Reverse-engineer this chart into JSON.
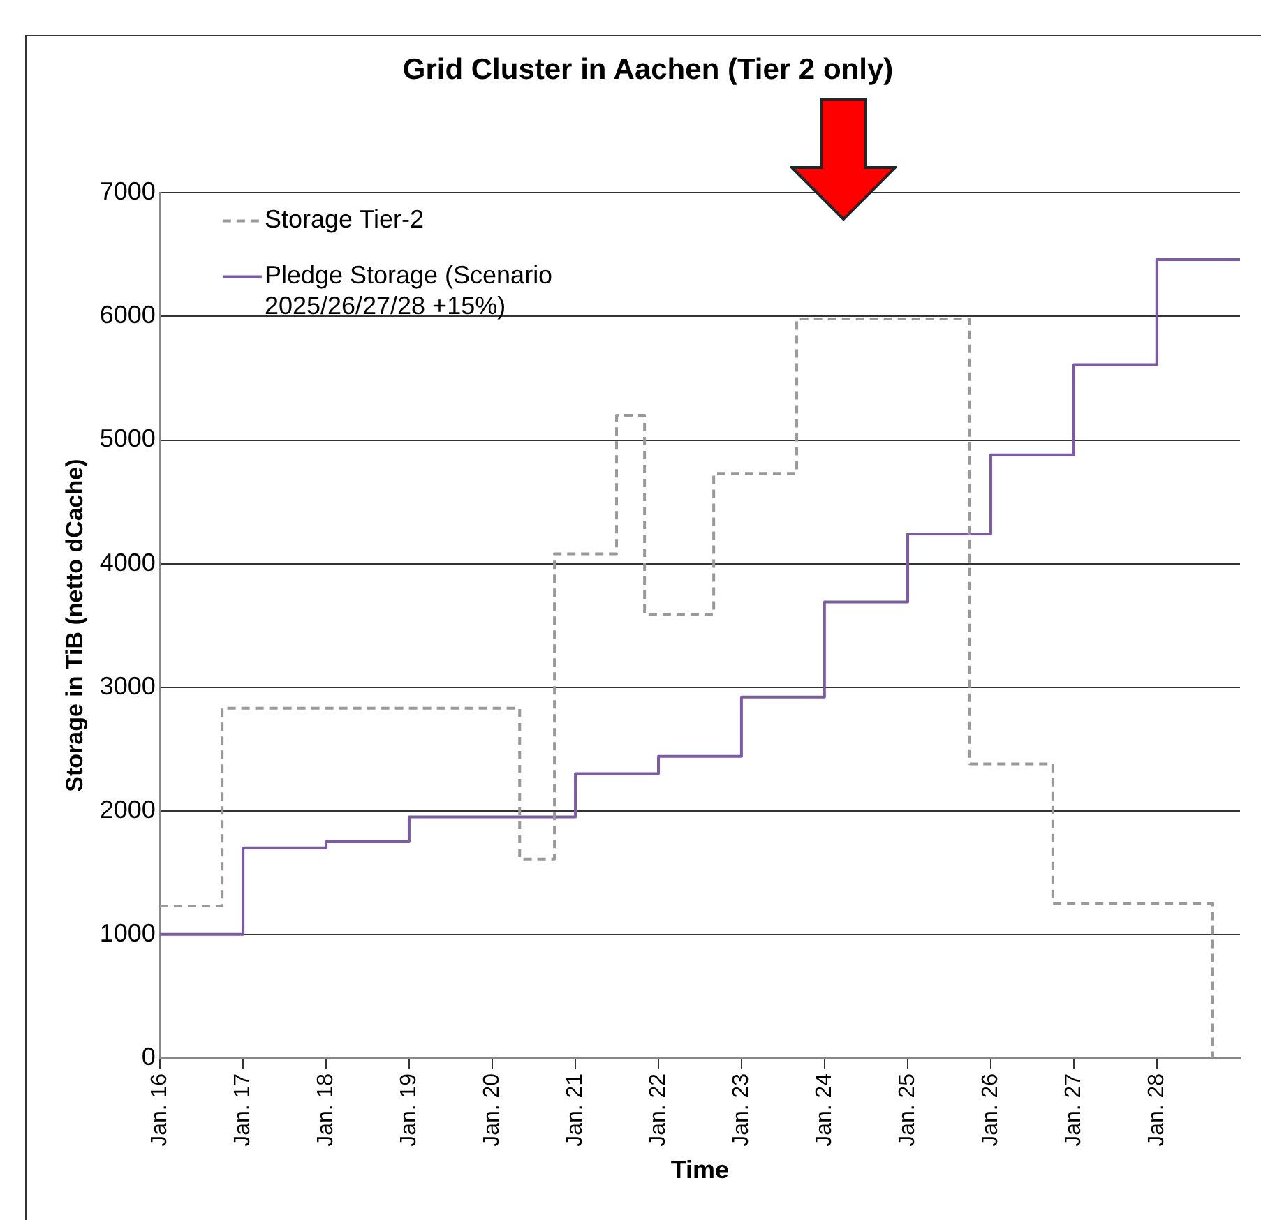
{
  "chart_data": {
    "type": "step",
    "title": "Grid Cluster in Aachen (Tier 2 only)",
    "xlabel": "Time",
    "ylabel": "Storage in TiB (netto dCache)",
    "xlim": [
      "2016-01",
      "2029-01"
    ],
    "xticks": [
      {
        "value": "2016-01",
        "label": "Jan. 16"
      },
      {
        "value": "2017-01",
        "label": "Jan. 17"
      },
      {
        "value": "2018-01",
        "label": "Jan. 18"
      },
      {
        "value": "2019-01",
        "label": "Jan. 19"
      },
      {
        "value": "2020-01",
        "label": "Jan. 20"
      },
      {
        "value": "2021-01",
        "label": "Jan. 21"
      },
      {
        "value": "2022-01",
        "label": "Jan. 22"
      },
      {
        "value": "2023-01",
        "label": "Jan. 23"
      },
      {
        "value": "2024-01",
        "label": "Jan. 24"
      },
      {
        "value": "2025-01",
        "label": "Jan. 25"
      },
      {
        "value": "2026-01",
        "label": "Jan. 26"
      },
      {
        "value": "2027-01",
        "label": "Jan. 27"
      },
      {
        "value": "2028-01",
        "label": "Jan. 28"
      }
    ],
    "ylim": [
      0,
      7000
    ],
    "yticks": [
      0,
      1000,
      2000,
      3000,
      4000,
      5000,
      6000,
      7000
    ],
    "grid": "y",
    "legend": "top left",
    "marker": "none",
    "series": [
      {
        "name": "Storage Tier-2",
        "color": "#999999",
        "line_style": "dashed",
        "x": [
          "2016-01",
          "2016-10",
          "2020-05",
          "2020-10",
          "2021-07",
          "2021-11",
          "2022-09",
          "2023-09",
          "2025-10",
          "2026-10",
          "2028-09"
        ],
        "values": [
          1230,
          2830,
          1610,
          4080,
          5200,
          3590,
          4730,
          5980,
          2380,
          1250,
          0
        ]
      },
      {
        "name": "Pledge Storage (Scenario 2025/26/27/28 +15%)",
        "color": "#7b5ba8",
        "line_style": "solid",
        "x": [
          "2016-01",
          "2017-01",
          "2018-01",
          "2019-01",
          "2021-01",
          "2022-01",
          "2023-01",
          "2024-01",
          "2025-01",
          "2026-01",
          "2027-01",
          "2028-01",
          "2029-01"
        ],
        "values": [
          1000,
          1700,
          1750,
          1950,
          2300,
          2440,
          2920,
          3690,
          4240,
          4880,
          5610,
          6460,
          6460
        ]
      }
    ]
  }
}
